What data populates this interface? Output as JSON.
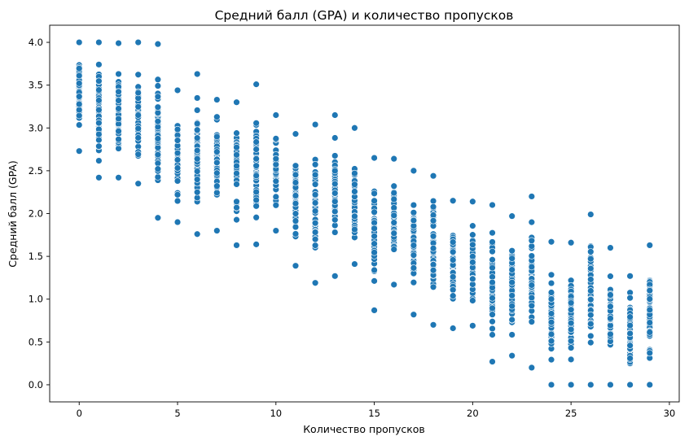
{
  "chart_data": {
    "type": "scatter",
    "title": "Средний балл (GPA) и количество пропусков",
    "xlabel": "Количество пропусков",
    "ylabel": "Средний балл (GPA)",
    "xlim": [
      -1.5,
      30.5
    ],
    "ylim": [
      -0.2,
      4.2
    ],
    "xticks": [
      0,
      5,
      10,
      15,
      20,
      25,
      30
    ],
    "yticks": [
      0.0,
      0.5,
      1.0,
      1.5,
      2.0,
      2.5,
      3.0,
      3.5,
      4.0
    ],
    "ytick_labels": [
      "0.0",
      "0.5",
      "1.0",
      "1.5",
      "2.0",
      "2.5",
      "3.0",
      "3.5",
      "4.0"
    ],
    "grid": false,
    "marker_color": "#1f77b4",
    "absence_ranges": [
      {
        "absences": 0,
        "gpa_min": 2.73,
        "gpa_max": 4.0
      },
      {
        "absences": 1,
        "gpa_min": 2.42,
        "gpa_max": 4.0
      },
      {
        "absences": 2,
        "gpa_min": 2.42,
        "gpa_max": 3.99
      },
      {
        "absences": 3,
        "gpa_min": 2.35,
        "gpa_max": 4.0
      },
      {
        "absences": 4,
        "gpa_min": 1.95,
        "gpa_max": 3.98
      },
      {
        "absences": 5,
        "gpa_min": 1.9,
        "gpa_max": 3.44
      },
      {
        "absences": 6,
        "gpa_min": 1.76,
        "gpa_max": 3.63
      },
      {
        "absences": 7,
        "gpa_min": 1.8,
        "gpa_max": 3.33
      },
      {
        "absences": 8,
        "gpa_min": 1.63,
        "gpa_max": 3.3
      },
      {
        "absences": 9,
        "gpa_min": 1.64,
        "gpa_max": 3.51
      },
      {
        "absences": 10,
        "gpa_min": 1.8,
        "gpa_max": 3.15
      },
      {
        "absences": 11,
        "gpa_min": 1.39,
        "gpa_max": 2.93
      },
      {
        "absences": 12,
        "gpa_min": 1.19,
        "gpa_max": 3.04
      },
      {
        "absences": 13,
        "gpa_min": 1.27,
        "gpa_max": 3.15
      },
      {
        "absences": 14,
        "gpa_min": 1.41,
        "gpa_max": 3.0
      },
      {
        "absences": 15,
        "gpa_min": 0.87,
        "gpa_max": 2.65
      },
      {
        "absences": 16,
        "gpa_min": 1.17,
        "gpa_max": 2.64
      },
      {
        "absences": 17,
        "gpa_min": 0.82,
        "gpa_max": 2.5
      },
      {
        "absences": 18,
        "gpa_min": 0.7,
        "gpa_max": 2.44
      },
      {
        "absences": 19,
        "gpa_min": 0.66,
        "gpa_max": 2.15
      },
      {
        "absences": 20,
        "gpa_min": 0.69,
        "gpa_max": 2.14
      },
      {
        "absences": 21,
        "gpa_min": 0.27,
        "gpa_max": 2.1
      },
      {
        "absences": 22,
        "gpa_min": 0.34,
        "gpa_max": 1.97
      },
      {
        "absences": 23,
        "gpa_min": 0.2,
        "gpa_max": 2.2
      },
      {
        "absences": 24,
        "gpa_min": 0.0,
        "gpa_max": 1.67
      },
      {
        "absences": 25,
        "gpa_min": 0.0,
        "gpa_max": 1.66
      },
      {
        "absences": 26,
        "gpa_min": 0.0,
        "gpa_max": 1.99
      },
      {
        "absences": 27,
        "gpa_min": 0.0,
        "gpa_max": 1.6
      },
      {
        "absences": 28,
        "gpa_min": 0.0,
        "gpa_max": 1.27
      },
      {
        "absences": 29,
        "gpa_min": 0.0,
        "gpa_max": 1.63
      }
    ]
  }
}
